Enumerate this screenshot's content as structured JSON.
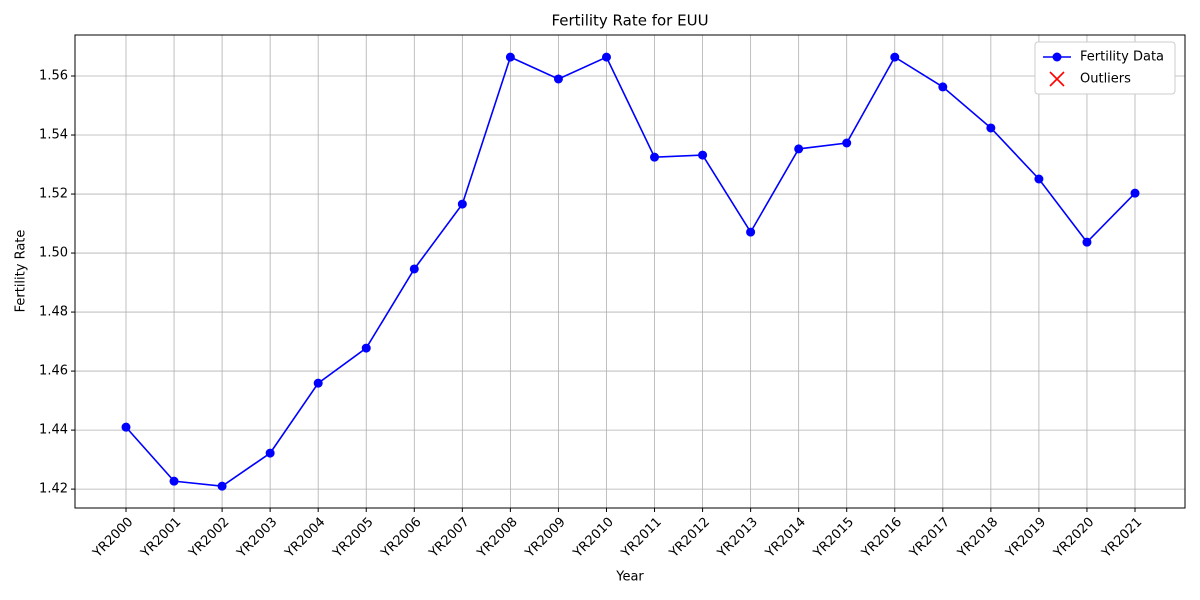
{
  "chart_data": {
    "type": "line",
    "title": "Fertility Rate for EUU",
    "x_label": "Year",
    "y_label": "Fertility Rate",
    "categories": [
      "YR2000",
      "YR2001",
      "YR2002",
      "YR2003",
      "YR2004",
      "YR2005",
      "YR2006",
      "YR2007",
      "YR2008",
      "YR2009",
      "YR2010",
      "YR2011",
      "YR2012",
      "YR2013",
      "YR2014",
      "YR2015",
      "YR2016",
      "YR2017",
      "YR2018",
      "YR2019",
      "YR2020",
      "YR2021"
    ],
    "series": [
      {
        "name": "Fertility Data",
        "color": "#0000ff",
        "marker": "o",
        "values": [
          1.441,
          1.4227,
          1.421,
          1.4322,
          1.4559,
          1.4678,
          1.4946,
          1.5166,
          1.5664,
          1.559,
          1.5664,
          1.5325,
          1.5332,
          1.5071,
          1.5353,
          1.5373,
          1.5664,
          1.5563,
          1.5424,
          1.5251,
          1.5037,
          1.5203
        ]
      },
      {
        "name": "Outliers",
        "color": "#ff0000",
        "marker": "x",
        "values": [
          null,
          null,
          null,
          null,
          null,
          null,
          null,
          null,
          null,
          null,
          null,
          null,
          null,
          null,
          null,
          null,
          null,
          null,
          null,
          null,
          null,
          null
        ]
      }
    ],
    "ylim": [
      1.4136,
      1.5739
    ],
    "yticks": [
      1.42,
      1.44,
      1.46,
      1.48,
      {
        "value": 1.5,
        "label": "1.50"
      },
      1.52,
      1.54,
      1.56
    ],
    "grid": true,
    "legend": "upper right"
  }
}
